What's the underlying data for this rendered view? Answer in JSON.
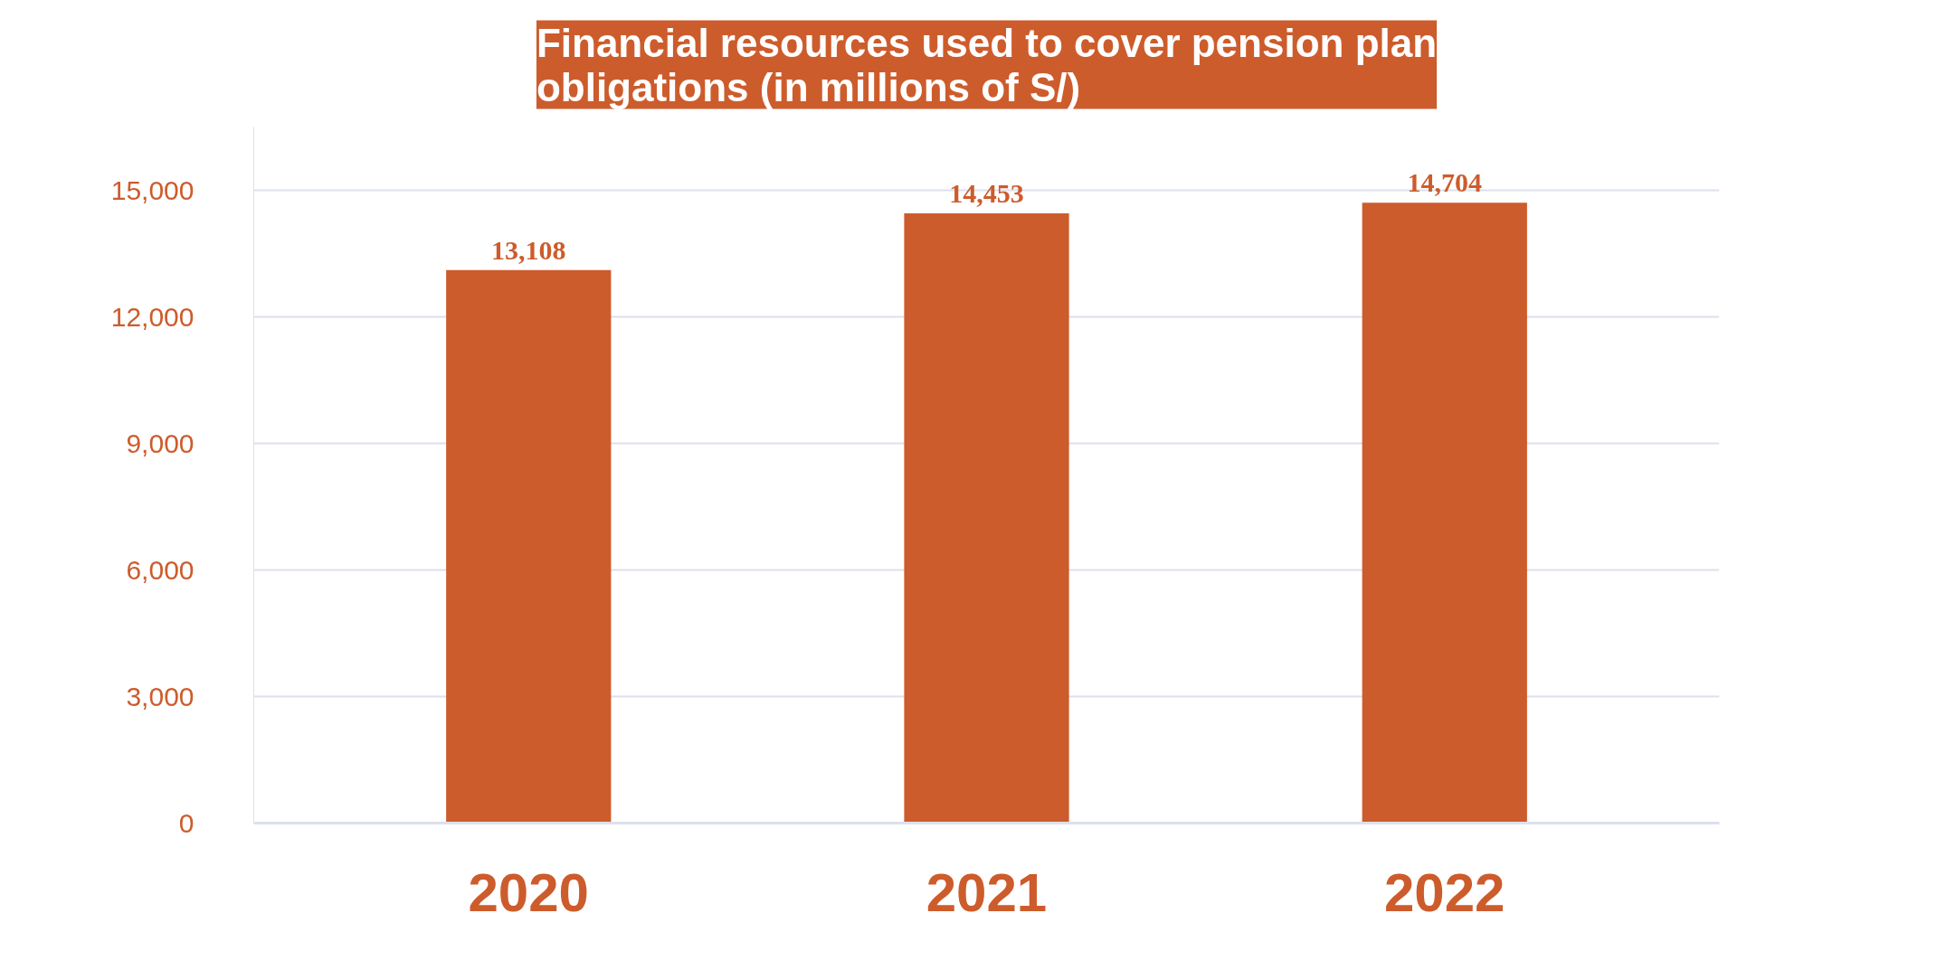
{
  "chart_data": {
    "type": "bar",
    "title": "Financial resources used to cover pension plan\nobligations (in millions of S/)",
    "categories": [
      "2020",
      "2021",
      "2022"
    ],
    "values": [
      13108,
      14453,
      14704
    ],
    "color": "#cd5c2c",
    "value_labels": [
      "13,108",
      "14,453",
      "14,704"
    ],
    "ylim": [
      0,
      16500
    ],
    "yticks": [
      {
        "value": 0,
        "label": "0"
      },
      {
        "value": 3000,
        "label": "3,000"
      },
      {
        "value": 6000,
        "label": "6,000"
      },
      {
        "value": 9000,
        "label": "9,000"
      },
      {
        "value": 12000,
        "label": "12,000"
      },
      {
        "value": 15000,
        "label": "15,000"
      }
    ],
    "grid": "y"
  }
}
